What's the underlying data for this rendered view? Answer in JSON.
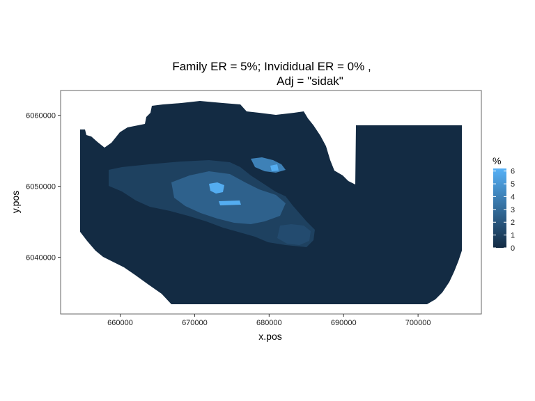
{
  "chart_data": {
    "type": "heatmap",
    "title_line1": "Family ER = 5%; Invididual ER = 0% ,",
    "title_line2": "Adj = \"sidak\"",
    "xlabel": "x.pos",
    "ylabel": "y.pos",
    "xlim": [
      652000,
      708500
    ],
    "ylim": [
      6032000,
      6063500
    ],
    "x_ticks": [
      660000,
      670000,
      680000,
      690000,
      700000
    ],
    "x_tick_labels": [
      "660000",
      "670000",
      "680000",
      "690000",
      "700000"
    ],
    "y_ticks": [
      6040000,
      6050000,
      6060000
    ],
    "y_tick_labels": [
      "6040000",
      "6050000",
      "6060000"
    ],
    "grid": false,
    "legend": {
      "title": "%",
      "position": "right",
      "breaks": [
        0,
        1,
        2,
        3,
        4,
        5,
        6
      ],
      "labels": [
        "0",
        "1",
        "2",
        "3",
        "4",
        "5",
        "6"
      ],
      "color_low": "#132B43",
      "color_high": "#56B1F7",
      "range": [
        0,
        6.2
      ]
    },
    "region_values": [
      {
        "region": "survey-area",
        "value": 0
      },
      {
        "region": "band-west",
        "value": 1
      },
      {
        "region": "core",
        "value": 2.5
      },
      {
        "region": "hotspot-east",
        "value": 1.5
      },
      {
        "region": "hotspot-northeast",
        "value": 4
      },
      {
        "region": "peak",
        "value": 6
      }
    ]
  }
}
